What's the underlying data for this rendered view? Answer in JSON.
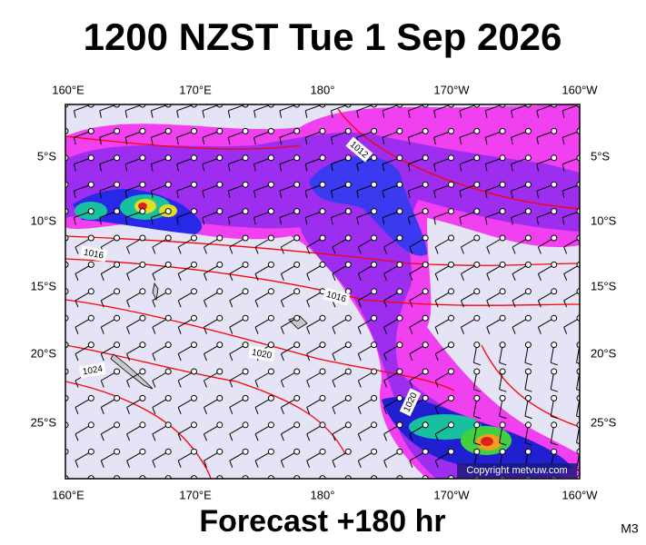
{
  "header": {
    "title": "1200 NZST Tue 1 Sep 2026"
  },
  "map": {
    "lon_labels": [
      "160°E",
      "170°E",
      "180°",
      "170°W",
      "160°W"
    ],
    "lat_labels": [
      "5°S",
      "10°S",
      "15°S",
      "20°S",
      "25°S"
    ],
    "isobar_labels": [
      "1012",
      "1016",
      "1016",
      "1020",
      "1024",
      "1020"
    ],
    "copyright": "Copyright metvuw.com"
  },
  "footer": {
    "forecast": "Forecast +180 hr",
    "code": "M3"
  }
}
